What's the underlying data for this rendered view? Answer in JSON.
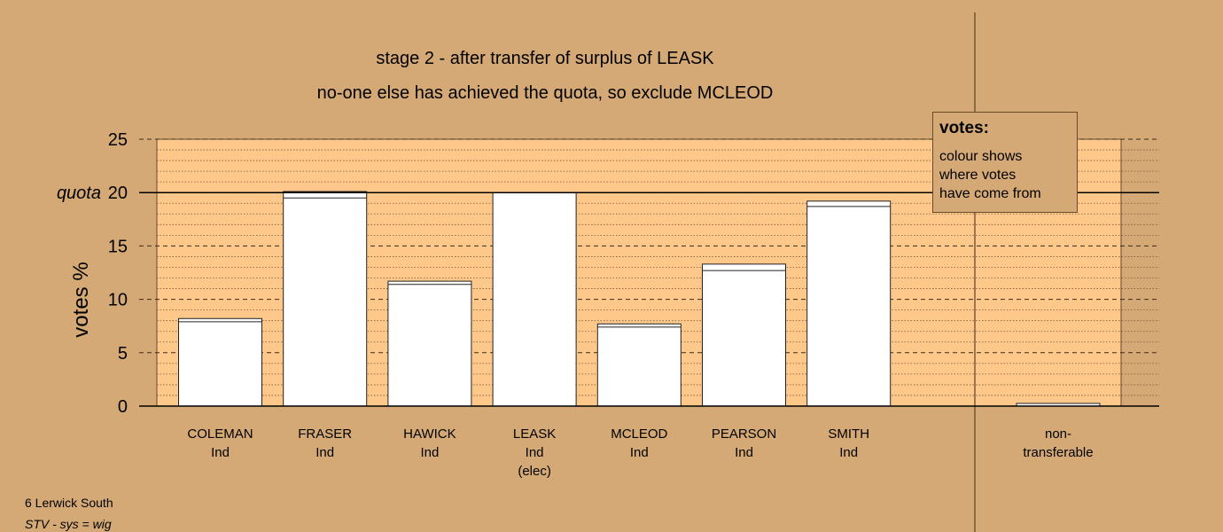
{
  "chart_data": {
    "type": "bar",
    "title": "stage 2 - after transfer of surplus of LEASK",
    "subtitle": "no-one else has achieved the quota, so exclude MCLEOD",
    "ylabel": "votes %",
    "ylim": [
      0,
      25
    ],
    "yticks": [
      0,
      5,
      10,
      15,
      20,
      25
    ],
    "quota_label": "quota",
    "quota_value": 20,
    "candidates": [
      {
        "name": "COLEMAN",
        "party": "Ind",
        "note": "",
        "base": 7.9,
        "total": 8.2
      },
      {
        "name": "FRASER",
        "party": "Ind",
        "note": "",
        "base": 19.5,
        "total": 20.1
      },
      {
        "name": "HAWICK",
        "party": "Ind",
        "note": "",
        "base": 11.4,
        "total": 11.7
      },
      {
        "name": "LEASK",
        "party": "Ind",
        "note": "(elec)",
        "base": 20.0,
        "total": 20.0
      },
      {
        "name": "MCLEOD",
        "party": "Ind",
        "note": "",
        "base": 7.4,
        "total": 7.7
      },
      {
        "name": "PEARSON",
        "party": "Ind",
        "note": "",
        "base": 12.7,
        "total": 13.3
      },
      {
        "name": "SMITH",
        "party": "Ind",
        "note": "",
        "base": 18.7,
        "total": 19.2
      }
    ],
    "nontransferable": {
      "label_line1": "non-",
      "label_line2": "transferable",
      "value": 0.25
    },
    "grid": true,
    "legend": {
      "title": "votes:",
      "lines": [
        "colour shows",
        "where votes",
        "have come from"
      ]
    }
  },
  "footer": {
    "line1": "6 Lerwick South",
    "line2": "STV - sys = wig"
  },
  "colors": {
    "background": "#d4a976",
    "plot_area": "#fdc88a",
    "bar": "#ffffff"
  }
}
